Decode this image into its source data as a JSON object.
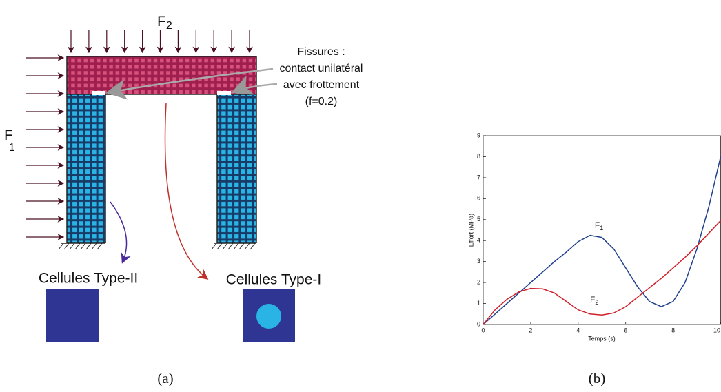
{
  "diagram": {
    "force_top": {
      "text": "F",
      "sub": "2"
    },
    "force_left": {
      "text": "F",
      "sub": "1"
    },
    "cracks_note": [
      "Fissures :",
      "contact unilatéral",
      "avec frottement",
      "(f=0.2)"
    ],
    "cell_type_2": "Cellules Type-II",
    "cell_type_1": "Cellules Type-I",
    "caption": "(a)"
  },
  "chart_data": {
    "type": "line",
    "x": [
      0,
      0.5,
      1,
      1.5,
      2,
      2.5,
      3,
      3.5,
      4,
      4.5,
      5,
      5.5,
      6,
      6.5,
      7,
      7.5,
      8,
      8.5,
      9,
      9.5,
      10
    ],
    "series": [
      {
        "name": "F1",
        "color": "#1f3f8f",
        "values": [
          0,
          0.5,
          1,
          1.5,
          2,
          2.5,
          3,
          3.45,
          3.95,
          4.25,
          4.15,
          3.6,
          2.7,
          1.8,
          1.1,
          0.85,
          1.1,
          2.0,
          3.6,
          5.6,
          8
        ]
      },
      {
        "name": "F2",
        "color": "#d0202a",
        "values": [
          0,
          0.7,
          1.2,
          1.55,
          1.72,
          1.7,
          1.5,
          1.1,
          0.7,
          0.5,
          0.45,
          0.55,
          0.85,
          1.3,
          1.75,
          2.2,
          2.7,
          3.2,
          3.75,
          4.35,
          4.95
        ]
      }
    ],
    "annotations": [
      {
        "text": "F",
        "sub": "1",
        "x": 4.7,
        "y": 4.7
      },
      {
        "text": "F",
        "sub": "2",
        "x": 4.5,
        "y": 1.15
      }
    ],
    "xlabel": "Temps (s)",
    "ylabel": "Effort (MPa)",
    "xlim": [
      0,
      10
    ],
    "xticks": [
      0,
      2,
      4,
      6,
      8,
      10
    ],
    "ylim": [
      0,
      9
    ],
    "yticks": [
      0,
      1,
      2,
      3,
      4,
      5,
      6,
      7,
      8,
      9
    ],
    "caption": "(b)"
  }
}
